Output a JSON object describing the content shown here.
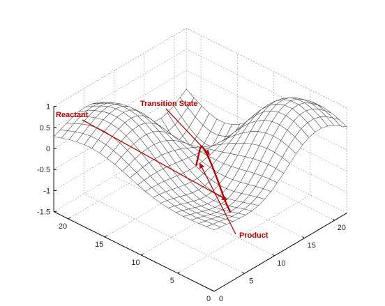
{
  "chart_data": {
    "type": "surface",
    "title": "",
    "xlabel": "",
    "ylabel": "",
    "zlabel": "",
    "grid": true,
    "x_range": [
      0,
      22
    ],
    "y_range": [
      0,
      22
    ],
    "zlim": [
      -1.5,
      1
    ],
    "x_ticks": [
      "0",
      "5",
      "10",
      "15",
      "20"
    ],
    "y_ticks": [
      "0",
      "5",
      "10",
      "15",
      "20"
    ],
    "z_ticks": [
      "-1.5",
      "-1",
      "-0.5",
      "0",
      "0.5",
      "1"
    ],
    "surface": {
      "description_function": "Gaussian hills and wells",
      "mesh_resolution": 21,
      "components": [
        {
          "x": 4,
          "y": 17,
          "amplitude": 1.25,
          "width": 5
        },
        {
          "x": 17,
          "y": 6,
          "amplitude": 0.95,
          "width": 5
        },
        {
          "x": 17,
          "y": 17,
          "amplitude": -1.55,
          "width": 4.5
        },
        {
          "x": 6,
          "y": 8,
          "amplitude": -0.55,
          "width": 4.5
        }
      ]
    },
    "reaction_path": [
      {
        "x": 1.5,
        "y": 4.5,
        "z": -0.12
      },
      {
        "x": 3,
        "y": 5.5,
        "z": -0.1
      },
      {
        "x": 5,
        "y": 7,
        "z": -0.02
      },
      {
        "x": 7,
        "y": 8.5,
        "z": 0.03
      },
      {
        "x": 9,
        "y": 10,
        "z": 0.06
      },
      {
        "x": 11,
        "y": 11.5,
        "z": 0.0
      },
      {
        "x": 13,
        "y": 13.5,
        "z": -0.3
      },
      {
        "x": 15,
        "y": 15.5,
        "z": -0.9
      },
      {
        "x": 16.5,
        "y": 17,
        "z": -1.35
      }
    ],
    "annotations": [
      {
        "label": "Reactant",
        "color": "#c00000"
      },
      {
        "label": "Transition State",
        "color": "#c00000"
      },
      {
        "label": "Product",
        "color": "#c00000"
      }
    ],
    "colors": {
      "mesh_line": "#4a4a4a",
      "mesh_fill": "#ffffff",
      "path": "#c00000",
      "grid": "#9a9a9a",
      "axis": "#000000"
    }
  }
}
